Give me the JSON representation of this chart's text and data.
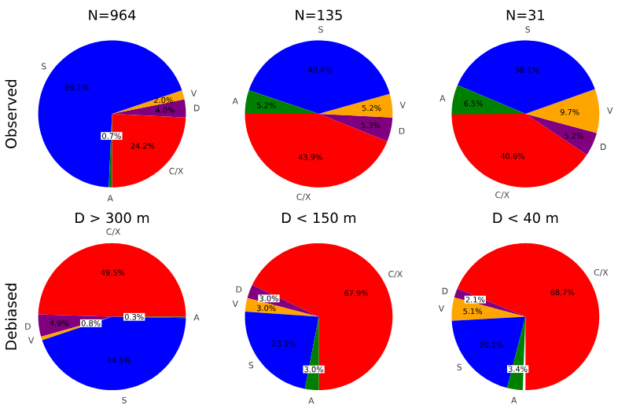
{
  "chart_data": [
    {
      "type": "pie",
      "title": "N=964",
      "ylabel": "Observed",
      "categories": [
        "C/X",
        "D",
        "V",
        "S",
        "A"
      ],
      "values": [
        24.2,
        4.0,
        2.0,
        69.1,
        0.7
      ],
      "colors": [
        "#ff0000",
        "#800080",
        "#ffa500",
        "#0000ff",
        "#008000"
      ],
      "value_labels": [
        "24.2%",
        "4.0%",
        "2.0%",
        "69.1%",
        "0.7%"
      ]
    },
    {
      "type": "pie",
      "title": "N=135",
      "categories": [
        "C/X",
        "D",
        "V",
        "S",
        "A"
      ],
      "values": [
        43.9,
        5.3,
        5.2,
        40.4,
        5.2
      ],
      "colors": [
        "#ff0000",
        "#800080",
        "#ffa500",
        "#0000ff",
        "#008000"
      ],
      "value_labels": [
        "43.9%",
        "5.3%",
        "5.2%",
        "40.4%",
        "5.2%"
      ]
    },
    {
      "type": "pie",
      "title": "N=31",
      "categories": [
        "C/X",
        "D",
        "V",
        "S",
        "A"
      ],
      "values": [
        40.6,
        5.2,
        9.7,
        38.1,
        6.5
      ],
      "colors": [
        "#ff0000",
        "#800080",
        "#ffa500",
        "#0000ff",
        "#008000"
      ],
      "value_labels": [
        "40.6%",
        "5.2%",
        "9.7%",
        "38.1%",
        "6.5%"
      ]
    },
    {
      "type": "pie",
      "title": "D > 300 m",
      "ylabel": "Debiased",
      "categories": [
        "C/X",
        "D",
        "V",
        "S",
        "A"
      ],
      "values": [
        49.5,
        4.9,
        0.8,
        44.5,
        0.3
      ],
      "colors": [
        "#ff0000",
        "#800080",
        "#ffa500",
        "#0000ff",
        "#008000"
      ],
      "value_labels": [
        "49.5%",
        "4.9%",
        "0.8%",
        "44.5%",
        "0.3%"
      ]
    },
    {
      "type": "pie",
      "title": "D < 150 m",
      "categories": [
        "C/X",
        "D",
        "V",
        "S",
        "A"
      ],
      "values": [
        67.9,
        3.0,
        3.0,
        23.1,
        3.0
      ],
      "colors": [
        "#ff0000",
        "#800080",
        "#ffa500",
        "#0000ff",
        "#008000"
      ],
      "value_labels": [
        "67.9%",
        "3.0%",
        "3.0%",
        "23.1%",
        "3.0%"
      ]
    },
    {
      "type": "pie",
      "title": "D < 40 m",
      "categories": [
        "C/X",
        "D",
        "V",
        "S",
        "A"
      ],
      "values": [
        68.7,
        2.1,
        5.1,
        20.1,
        3.4
      ],
      "colors": [
        "#ff0000",
        "#800080",
        "#ffa500",
        "#0000ff",
        "#008000"
      ],
      "value_labels": [
        "68.7%",
        "2.1%",
        "5.1%",
        "20.1%",
        "3.4%"
      ]
    }
  ]
}
